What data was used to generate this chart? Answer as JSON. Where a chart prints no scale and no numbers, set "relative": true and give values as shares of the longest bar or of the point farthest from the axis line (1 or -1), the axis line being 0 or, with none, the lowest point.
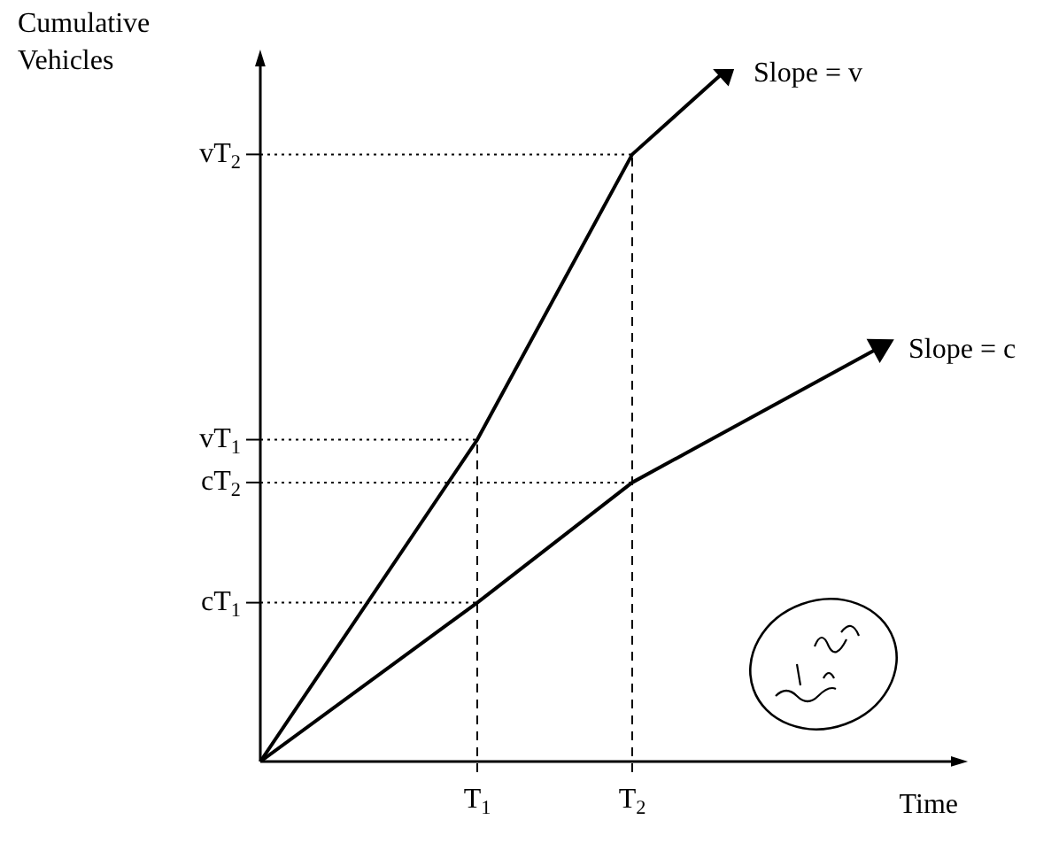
{
  "chart_data": {
    "type": "line",
    "xlabel": "Time",
    "ylabel": "Cumulative Vehicles",
    "relative": true,
    "categories": [
      null,
      null,
      null,
      null,
      null,
      null,
      null,
      "T$_{1}$",
      null,
      null,
      null,
      null,
      "T$_{2}$",
      null,
      null,
      null,
      null,
      null,
      null,
      null,
      null
    ],
    "series": [
      {
        "color": "#000000",
        "values": [
          0,
          null,
          null,
          null,
          null,
          null,
          null,
          0.466,
          null,
          null,
          null,
          null,
          0.879,
          null,
          null,
          1,
          null,
          null,
          null,
          null,
          null
        ]
      },
      {
        "color": "#000000",
        "values": [
          0,
          null,
          null,
          null,
          null,
          null,
          null,
          0.23,
          null,
          null,
          null,
          null,
          0.404,
          null,
          null,
          null,
          null,
          null,
          null,
          null,
          0.6
        ]
      }
    ],
    "ref_lines": [
      {
        "axis": "x",
        "value": "T$_{1}$",
        "line_style": "dashed"
      },
      {
        "axis": "x",
        "value": "T$_{2}$",
        "line_style": "dashed"
      },
      {
        "axis": "y",
        "value": 0.879,
        "label": "vT$_{2}$",
        "line_style": "dotted"
      },
      {
        "axis": "y",
        "value": 0.466,
        "label": "vT$_{1}$",
        "line_style": "dotted"
      },
      {
        "axis": "y",
        "value": 0.404,
        "label": "cT$_{2}$",
        "line_style": "dotted"
      },
      {
        "axis": "y",
        "value": 0.23,
        "label": "cT$_{1}$",
        "line_style": "dotted"
      }
    ],
    "annotations": [
      "Slope = v",
      "Slope = c"
    ],
    "legend": false,
    "marker": "none",
    "line_style": "solid"
  }
}
